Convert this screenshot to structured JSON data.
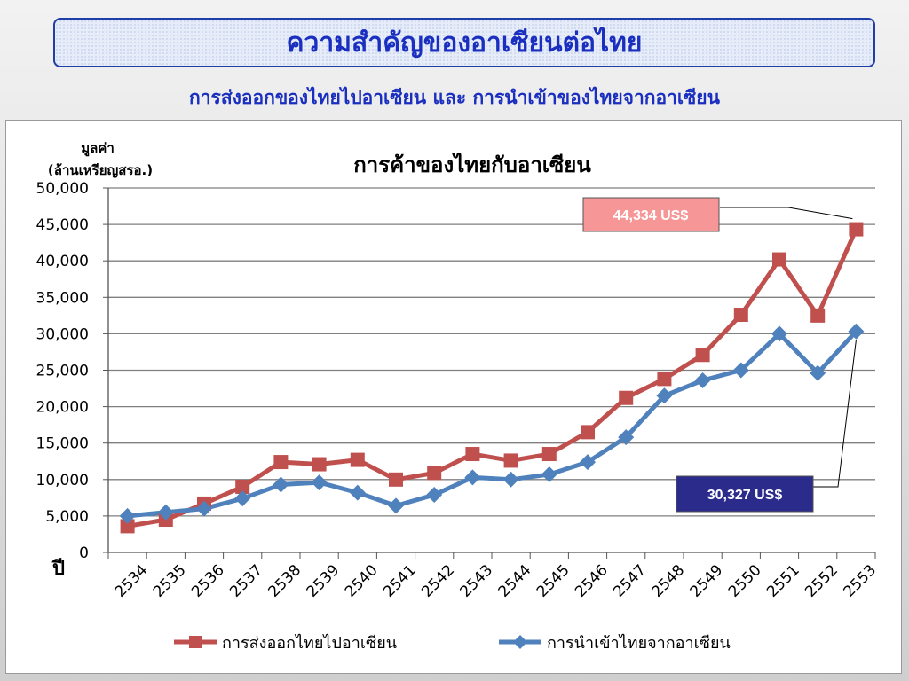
{
  "slide": {
    "title": "ความสำคัญของอาเซียนต่อไทย",
    "subtitle": "การส่งออกของไทยไปอาเซียน และ การนำเข้าของไทยจากอาเซียน"
  },
  "colors": {
    "title_text": "#1a2fbf",
    "series_export": "#c0504d",
    "series_import": "#4f81bd",
    "callout_export_bg": "#f79696",
    "callout_import_bg": "#2b2b8c"
  },
  "chart_data": {
    "type": "line",
    "title": "การค้าของไทยกับอาเซียน",
    "ylabel_line1": "มูลค่า",
    "ylabel_line2": "(ล้านเหรียญสรอ.)",
    "xlabel": "ปี",
    "ylim": [
      0,
      50000
    ],
    "yticks": [
      "50,000",
      "45,000",
      "40,000",
      "35,000",
      "30,000",
      "25,000",
      "20,000",
      "15,000",
      "10,000",
      "5,000",
      "0"
    ],
    "ytick_values": [
      50000,
      45000,
      40000,
      35000,
      30000,
      25000,
      20000,
      15000,
      10000,
      5000,
      0
    ],
    "grid": true,
    "legend_position": "bottom",
    "categories": [
      "2534",
      "2535",
      "2536",
      "2537",
      "2538",
      "2539",
      "2540",
      "2541",
      "2542",
      "2543",
      "2544",
      "2545",
      "2546",
      "2547",
      "2548",
      "2549",
      "2550",
      "2551",
      "2552",
      "2553"
    ],
    "series": [
      {
        "name": "การส่งออกไทยไปอาเซียน",
        "marker": "square",
        "values": [
          3600,
          4500,
          6700,
          9000,
          12400,
          12100,
          12700,
          10000,
          10900,
          13500,
          12600,
          13500,
          16500,
          21200,
          23800,
          27100,
          32600,
          40200,
          32500,
          44334
        ]
      },
      {
        "name": "การนำเข้าไทยจากอาเซียน",
        "marker": "diamond",
        "values": [
          5000,
          5500,
          6000,
          7400,
          9300,
          9600,
          8200,
          6400,
          7900,
          10300,
          10000,
          10700,
          12400,
          15800,
          21500,
          23600,
          25000,
          30000,
          24600,
          30327
        ]
      }
    ],
    "annotations": [
      {
        "text": "44,334 US$",
        "series": 0,
        "point": 19
      },
      {
        "text": "30,327 US$",
        "series": 1,
        "point": 19
      }
    ]
  }
}
